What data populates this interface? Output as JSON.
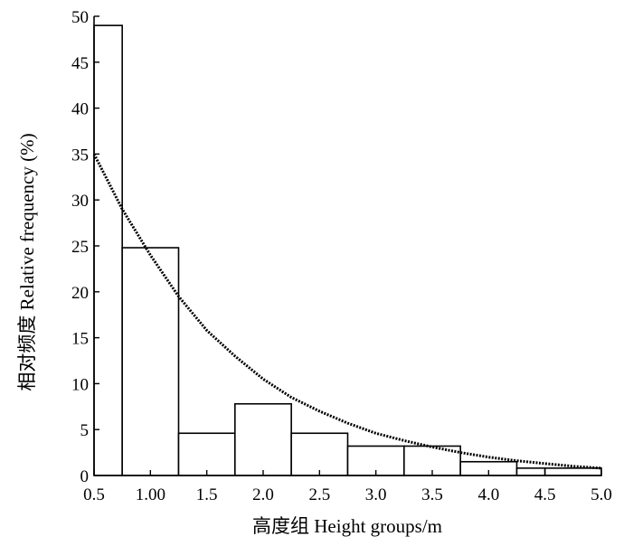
{
  "chart_data": {
    "type": "bar",
    "xlabel": "高度组 Height groups/m",
    "ylabel": "相对频度 Relative frequency (%)",
    "xlim": [
      0.5,
      5.0
    ],
    "ylim": [
      0,
      50
    ],
    "x_ticks": [
      0.5,
      1.0,
      1.5,
      2.0,
      2.5,
      3.0,
      3.5,
      4.0,
      4.5,
      5.0
    ],
    "x_tick_labels": [
      "0.5",
      "1.00",
      "1.5",
      "2.0",
      "2.5",
      "3.0",
      "3.5",
      "4.0",
      "4.5",
      "5.0"
    ],
    "y_ticks": [
      0,
      5,
      10,
      15,
      20,
      25,
      30,
      35,
      40,
      45,
      50
    ],
    "y_tick_labels": [
      "0",
      "5",
      "10",
      "15",
      "20",
      "25",
      "30",
      "35",
      "40",
      "45",
      "50"
    ],
    "bins": [
      {
        "start": 0.5,
        "end": 0.75,
        "value": 49.0
      },
      {
        "start": 0.75,
        "end": 1.25,
        "value": 24.8
      },
      {
        "start": 1.25,
        "end": 1.75,
        "value": 4.6
      },
      {
        "start": 1.75,
        "end": 2.25,
        "value": 7.8
      },
      {
        "start": 2.25,
        "end": 2.75,
        "value": 4.6
      },
      {
        "start": 2.75,
        "end": 3.25,
        "value": 3.2
      },
      {
        "start": 3.25,
        "end": 3.75,
        "value": 3.2
      },
      {
        "start": 3.75,
        "end": 4.25,
        "value": 1.5
      },
      {
        "start": 4.25,
        "end": 4.5,
        "value": 0.8
      },
      {
        "start": 4.5,
        "end": 5.0,
        "value": 0.8
      }
    ],
    "fit_curve": {
      "style": "dotted",
      "points": [
        [
          0.5,
          35.0
        ],
        [
          0.75,
          29.0
        ],
        [
          1.0,
          24.0
        ],
        [
          1.25,
          19.5
        ],
        [
          1.5,
          15.8
        ],
        [
          1.75,
          13.0
        ],
        [
          2.0,
          10.5
        ],
        [
          2.25,
          8.5
        ],
        [
          2.5,
          7.0
        ],
        [
          2.75,
          5.7
        ],
        [
          3.0,
          4.6
        ],
        [
          3.25,
          3.8
        ],
        [
          3.5,
          3.1
        ],
        [
          3.75,
          2.5
        ],
        [
          4.0,
          2.0
        ],
        [
          4.25,
          1.6
        ],
        [
          4.5,
          1.3
        ],
        [
          4.75,
          1.0
        ],
        [
          5.0,
          0.8
        ]
      ]
    }
  }
}
